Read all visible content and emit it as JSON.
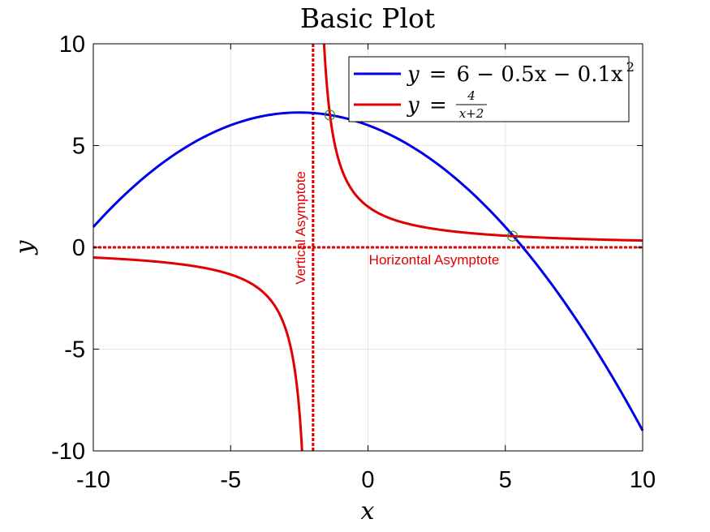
{
  "chart_data": {
    "type": "line",
    "title": "Basic Plot",
    "xlabel": "x",
    "ylabel": "y",
    "xlim": [
      -10,
      10
    ],
    "ylim": [
      -10,
      10
    ],
    "xticks": [
      -10,
      -5,
      0,
      5,
      10
    ],
    "yticks": [
      -10,
      -5,
      0,
      5,
      10
    ],
    "xtick_labels": [
      "-10",
      "-5",
      "0",
      "5",
      "10"
    ],
    "ytick_labels": [
      "-10",
      "-5",
      "0",
      "5",
      "10"
    ],
    "grid": true,
    "legend_position": "top-right",
    "series": [
      {
        "name": "y = 6 − 0.5x − 0.1x²",
        "color": "#0000e6",
        "formula": "6 - 0.5x - 0.1x^2",
        "points": [
          [
            -10,
            1.0
          ],
          [
            -9,
            2.4
          ],
          [
            -8,
            3.6
          ],
          [
            -7,
            4.6
          ],
          [
            -6,
            5.4
          ],
          [
            -5,
            6.0
          ],
          [
            -4,
            6.4
          ],
          [
            -3,
            6.6
          ],
          [
            -2.5,
            6.625
          ],
          [
            -2,
            6.6
          ],
          [
            -1,
            6.4
          ],
          [
            0,
            6.0
          ],
          [
            1,
            5.4
          ],
          [
            2,
            4.6
          ],
          [
            3,
            3.6
          ],
          [
            4,
            2.4
          ],
          [
            5,
            1.0
          ],
          [
            6,
            -0.6
          ],
          [
            7,
            -2.4
          ],
          [
            8,
            -4.4
          ],
          [
            9,
            -6.6
          ],
          [
            10,
            -9.0
          ]
        ]
      },
      {
        "name": "y = 4/(x+2)",
        "color": "#e00000",
        "formula": "4/(x+2)",
        "segments": [
          [
            [
              -10,
              -0.5
            ],
            [
              -9,
              -0.571
            ],
            [
              -8,
              -0.667
            ],
            [
              -7,
              -0.8
            ],
            [
              -6,
              -1.0
            ],
            [
              -5,
              -1.333
            ],
            [
              -4,
              -2.0
            ],
            [
              -3.5,
              -2.667
            ],
            [
              -3,
              -4.0
            ],
            [
              -2.75,
              -5.333
            ],
            [
              -2.6,
              -6.667
            ],
            [
              -2.5,
              -8.0
            ],
            [
              -2.4,
              -10.0
            ]
          ],
          [
            [
              -1.6,
              10.0
            ],
            [
              -1.5,
              8.0
            ],
            [
              -1.4,
              6.667
            ],
            [
              -1.25,
              5.333
            ],
            [
              -1,
              4.0
            ],
            [
              -0.5,
              2.667
            ],
            [
              0,
              2.0
            ],
            [
              1,
              1.333
            ],
            [
              2,
              1.0
            ],
            [
              3,
              0.8
            ],
            [
              4,
              0.667
            ],
            [
              5,
              0.571
            ],
            [
              6,
              0.5
            ],
            [
              7,
              0.444
            ],
            [
              8,
              0.4
            ],
            [
              9,
              0.364
            ],
            [
              10,
              0.333
            ]
          ]
        ]
      }
    ],
    "asymptotes": [
      {
        "orientation": "vertical",
        "value": -2,
        "label": "Vertical Asymptote",
        "color": "#e00000"
      },
      {
        "orientation": "horizontal",
        "value": 0,
        "label": "Horizontal Asymptote",
        "color": "#e00000"
      }
    ],
    "intersections": [
      {
        "x": -1.39,
        "y": 6.5,
        "color": "#2e8b2e"
      },
      {
        "x": 5.26,
        "y": 0.55,
        "color": "#2e8b2e"
      }
    ],
    "legend_entries": {
      "blue": {
        "lhs": "y",
        "eq": "=",
        "rhs": "6 − 0.5x − 0.1x",
        "sup": "2"
      },
      "red": {
        "lhs": "y",
        "eq": "=",
        "num": "4",
        "den": "x+2"
      }
    }
  }
}
